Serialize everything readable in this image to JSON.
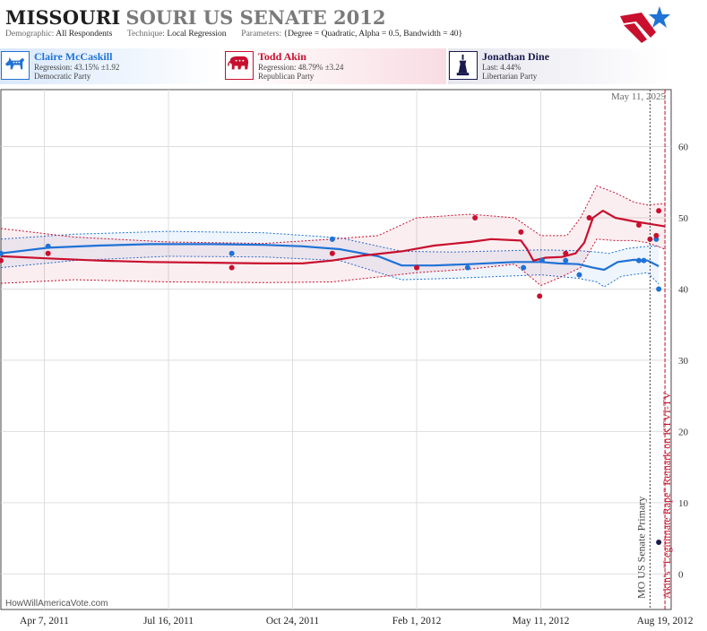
{
  "header": {
    "title_strong": "MISSOURI",
    "title_rest": "SOURI US SENATE 2012",
    "demographic_label": "Demographic:",
    "demographic_value": "All Respondents",
    "technique_label": "Technique:",
    "technique_value": "Local Regression",
    "parameters_label": "Parameters:",
    "parameters_value": "{Degree = Quadratic, Alpha = 0.5, Bandwidth = 40}"
  },
  "candidates": [
    {
      "name": "Claire McCaskill",
      "stat": "Regression: 43.15% ±1.92",
      "party": "Democratic Party",
      "color": "#1f72d6",
      "icon": "donkey-icon"
    },
    {
      "name": "Todd Akin",
      "stat": "Regression: 48.79% ±3.24",
      "party": "Republican Party",
      "color": "#c8102e",
      "icon": "elephant-icon"
    },
    {
      "name": "Jonathan Dine",
      "stat": "Last: 4.44%",
      "party": "Libertarian Party",
      "color": "#1a1a4e",
      "icon": "statue-of-liberty-icon"
    }
  ],
  "credit": "HowWillAmericaVote.com",
  "chart_data": {
    "type": "line",
    "x_axis": {
      "type": "date",
      "range": [
        "2011-03-03",
        "2012-08-24"
      ],
      "ticks": [
        "2011-04-07",
        "2011-07-16",
        "2011-10-24",
        "2012-02-01",
        "2012-05-11",
        "2012-08-19"
      ],
      "tick_labels": [
        "Apr 7, 2011",
        "Jul 16, 2011",
        "Oct 24, 2011",
        "Feb 1, 2012",
        "May 11, 2012",
        "Aug 19, 2012"
      ]
    },
    "y_axis": {
      "range": [
        -5,
        68
      ],
      "ticks": [
        0,
        10,
        20,
        30,
        40,
        50,
        60
      ],
      "side": "right"
    },
    "grid": true,
    "today_label": "May 11, 2025",
    "events": [
      {
        "date": "2012-08-07",
        "label": "MO US Senate Primary",
        "color": "#444444",
        "style": "dotted"
      },
      {
        "date": "2012-08-19",
        "label": "Akin's \"Legitimate Rape\" Remark on KTVI-TV",
        "color": "#c8102e",
        "style": "dashed"
      }
    ],
    "series": [
      {
        "name": "Claire McCaskill",
        "color": "#1f72d6",
        "trend": [
          [
            "2011-03-03",
            45.0
          ],
          [
            "2011-04-10",
            45.8
          ],
          [
            "2011-05-20",
            46.1
          ],
          [
            "2011-07-01",
            46.3
          ],
          [
            "2011-08-20",
            46.3
          ],
          [
            "2011-10-01",
            46.2
          ],
          [
            "2011-11-01",
            46.0
          ],
          [
            "2011-12-01",
            45.6
          ],
          [
            "2012-01-01",
            44.6
          ],
          [
            "2012-01-20",
            43.3
          ],
          [
            "2012-02-15",
            43.3
          ],
          [
            "2012-03-15",
            43.5
          ],
          [
            "2012-04-20",
            43.8
          ],
          [
            "2012-05-11",
            43.8
          ],
          [
            "2012-05-25",
            43.6
          ],
          [
            "2012-06-10",
            43.5
          ],
          [
            "2012-06-22",
            43.0
          ],
          [
            "2012-07-01",
            42.7
          ],
          [
            "2012-07-12",
            43.8
          ],
          [
            "2012-07-25",
            44.1
          ],
          [
            "2012-08-05",
            44.0
          ],
          [
            "2012-08-14",
            43.2
          ]
        ],
        "band_upper": [
          [
            "2011-03-03",
            47.0
          ],
          [
            "2011-05-01",
            47.7
          ],
          [
            "2011-07-16",
            48.1
          ],
          [
            "2011-10-01",
            47.9
          ],
          [
            "2011-12-01",
            47.2
          ],
          [
            "2012-01-20",
            45.3
          ],
          [
            "2012-03-01",
            45.2
          ],
          [
            "2012-05-11",
            45.5
          ],
          [
            "2012-06-10",
            45.4
          ],
          [
            "2012-06-25",
            45.2
          ],
          [
            "2012-07-05",
            45.0
          ],
          [
            "2012-07-20",
            45.7
          ],
          [
            "2012-08-05",
            46.0
          ],
          [
            "2012-08-14",
            46.0
          ]
        ],
        "band_lower": [
          [
            "2011-03-03",
            43.0
          ],
          [
            "2011-05-01",
            44.0
          ],
          [
            "2011-07-16",
            44.6
          ],
          [
            "2011-10-01",
            44.5
          ],
          [
            "2011-12-01",
            44.0
          ],
          [
            "2012-01-20",
            41.3
          ],
          [
            "2012-03-01",
            41.5
          ],
          [
            "2012-05-11",
            42.0
          ],
          [
            "2012-06-10",
            41.5
          ],
          [
            "2012-06-25",
            41.0
          ],
          [
            "2012-07-01",
            40.3
          ],
          [
            "2012-07-15",
            41.8
          ],
          [
            "2012-08-05",
            42.3
          ],
          [
            "2012-08-14",
            40.7
          ]
        ],
        "polls": [
          [
            "2011-03-03",
            45
          ],
          [
            "2011-04-10",
            46
          ],
          [
            "2011-09-05",
            45
          ],
          [
            "2011-11-25",
            47
          ],
          [
            "2012-03-13",
            43
          ],
          [
            "2012-04-27",
            43
          ],
          [
            "2012-05-12",
            44
          ],
          [
            "2012-05-31",
            44
          ],
          [
            "2012-06-11",
            42
          ],
          [
            "2012-07-29",
            44
          ],
          [
            "2012-08-02",
            44
          ],
          [
            "2012-08-12",
            47
          ],
          [
            "2012-08-14",
            40
          ]
        ]
      },
      {
        "name": "Todd Akin",
        "color": "#c8102e",
        "trend": [
          [
            "2011-03-03",
            44.6
          ],
          [
            "2011-04-10",
            44.3
          ],
          [
            "2011-05-20",
            44.0
          ],
          [
            "2011-07-01",
            43.8
          ],
          [
            "2011-08-20",
            43.7
          ],
          [
            "2011-10-01",
            43.6
          ],
          [
            "2011-11-01",
            43.6
          ],
          [
            "2011-11-25",
            44.0
          ],
          [
            "2011-12-20",
            44.7
          ],
          [
            "2012-01-20",
            45.3
          ],
          [
            "2012-02-15",
            46.1
          ],
          [
            "2012-03-15",
            46.6
          ],
          [
            "2012-04-01",
            47.0
          ],
          [
            "2012-04-25",
            46.8
          ],
          [
            "2012-04-30",
            45.6
          ],
          [
            "2012-05-05",
            44.0
          ],
          [
            "2012-05-15",
            44.4
          ],
          [
            "2012-05-28",
            44.5
          ],
          [
            "2012-06-08",
            45.0
          ],
          [
            "2012-06-15",
            46.5
          ],
          [
            "2012-06-22",
            50.0
          ],
          [
            "2012-06-30",
            51.0
          ],
          [
            "2012-07-10",
            50.0
          ],
          [
            "2012-07-25",
            49.5
          ],
          [
            "2012-08-05",
            49.2
          ],
          [
            "2012-08-19",
            48.79
          ]
        ],
        "band_upper": [
          [
            "2011-03-03",
            48.5
          ],
          [
            "2011-05-01",
            47.3
          ],
          [
            "2011-07-16",
            46.6
          ],
          [
            "2011-10-01",
            46.4
          ],
          [
            "2011-11-25",
            47.0
          ],
          [
            "2012-01-01",
            47.5
          ],
          [
            "2012-02-01",
            50.0
          ],
          [
            "2012-03-15",
            50.5
          ],
          [
            "2012-04-20",
            50.0
          ],
          [
            "2012-05-11",
            47.5
          ],
          [
            "2012-06-01",
            47.5
          ],
          [
            "2012-06-12",
            50.0
          ],
          [
            "2012-06-25",
            54.5
          ],
          [
            "2012-07-10",
            53.5
          ],
          [
            "2012-07-25",
            52.2
          ],
          [
            "2012-08-05",
            51.8
          ],
          [
            "2012-08-19",
            52.0
          ]
        ],
        "band_lower": [
          [
            "2011-03-03",
            40.8
          ],
          [
            "2011-05-01",
            41.3
          ],
          [
            "2011-07-16",
            41.0
          ],
          [
            "2011-10-01",
            40.9
          ],
          [
            "2011-11-25",
            41.0
          ],
          [
            "2012-01-01",
            41.7
          ],
          [
            "2012-02-01",
            42.3
          ],
          [
            "2012-03-15",
            42.8
          ],
          [
            "2012-04-20",
            43.5
          ],
          [
            "2012-05-11",
            40.5
          ],
          [
            "2012-05-25",
            41.5
          ],
          [
            "2012-06-12",
            43.0
          ],
          [
            "2012-06-25",
            47.0
          ],
          [
            "2012-07-10",
            46.8
          ],
          [
            "2012-07-25",
            46.8
          ],
          [
            "2012-08-05",
            46.5
          ],
          [
            "2012-08-19",
            45.6
          ]
        ],
        "polls": [
          [
            "2011-03-03",
            44
          ],
          [
            "2011-04-10",
            45
          ],
          [
            "2011-09-05",
            43
          ],
          [
            "2011-11-25",
            45
          ],
          [
            "2012-02-01",
            43
          ],
          [
            "2012-03-19",
            50
          ],
          [
            "2012-04-25",
            48
          ],
          [
            "2012-05-10",
            39
          ],
          [
            "2012-05-31",
            45
          ],
          [
            "2012-06-19",
            50
          ],
          [
            "2012-07-29",
            49
          ],
          [
            "2012-08-07",
            47
          ],
          [
            "2012-08-12",
            47.5
          ],
          [
            "2012-08-14",
            51
          ]
        ]
      },
      {
        "name": "Jonathan Dine",
        "color": "#1a1a4e",
        "polls": [
          [
            "2012-08-14",
            4.44
          ]
        ]
      }
    ]
  }
}
